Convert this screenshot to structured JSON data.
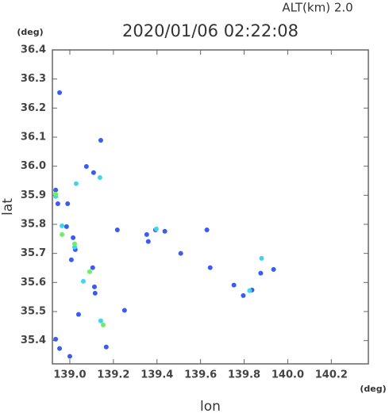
{
  "chart_data": {
    "type": "scatter",
    "title": "2020/01/06 02:22:08",
    "subtitle": "ALT(km) 2.0",
    "x_unit": "(deg)",
    "y_unit": "(deg)",
    "x_label": "lon",
    "y_label": "lat",
    "xlim": [
      138.92,
      140.37
    ],
    "ylim": [
      35.32,
      36.4
    ],
    "xticks": [
      {
        "value": 139,
        "label": "139.0"
      },
      139.2,
      139.4,
      139.6,
      139.8,
      {
        "value": 140,
        "label": "140.0"
      },
      140.2
    ],
    "yticks": [
      35.4,
      35.5,
      35.6,
      35.7,
      35.8,
      35.9,
      {
        "value": 36,
        "label": "36.0"
      },
      36.1,
      36.2,
      36.3,
      36.4
    ],
    "series": [
      {
        "color": "#3a5cf0",
        "x": [
          138.953,
          139.142,
          139.076,
          139.109,
          138.935,
          138.945,
          138.99,
          138.985,
          139.015,
          139.025,
          139.007,
          139.105,
          139.113,
          139.116,
          139.04,
          138.935,
          138.953,
          139.167,
          139.0,
          139.251,
          139.218,
          139.353,
          139.393,
          139.436,
          139.36,
          139.509,
          139.644,
          139.629,
          139.753,
          139.796,
          139.836,
          139.876,
          139.935
        ],
        "values": [
          36.253,
          36.089,
          35.999,
          35.978,
          35.918,
          35.871,
          35.871,
          35.792,
          35.754,
          35.713,
          35.678,
          35.651,
          35.585,
          35.563,
          35.49,
          35.405,
          35.373,
          35.378,
          35.346,
          35.504,
          35.781,
          35.765,
          35.781,
          35.776,
          35.741,
          35.7,
          35.651,
          35.781,
          35.591,
          35.555,
          35.574,
          35.632,
          35.645
        ]
      },
      {
        "color": "#3cd6f0",
        "x": [
          138.935,
          139.029,
          139.138,
          138.964,
          139.022,
          139.062,
          139.397,
          139.88,
          139.825,
          139.142
        ],
        "values": [
          35.896,
          35.94,
          35.961,
          35.795,
          35.722,
          35.604,
          35.784,
          35.683,
          35.572,
          35.468
        ]
      },
      {
        "color": "#6cf060",
        "x": [
          138.935,
          138.964,
          139.022,
          139.091,
          139.153
        ],
        "values": [
          35.904,
          35.765,
          35.733,
          35.637,
          35.454
        ]
      }
    ]
  }
}
